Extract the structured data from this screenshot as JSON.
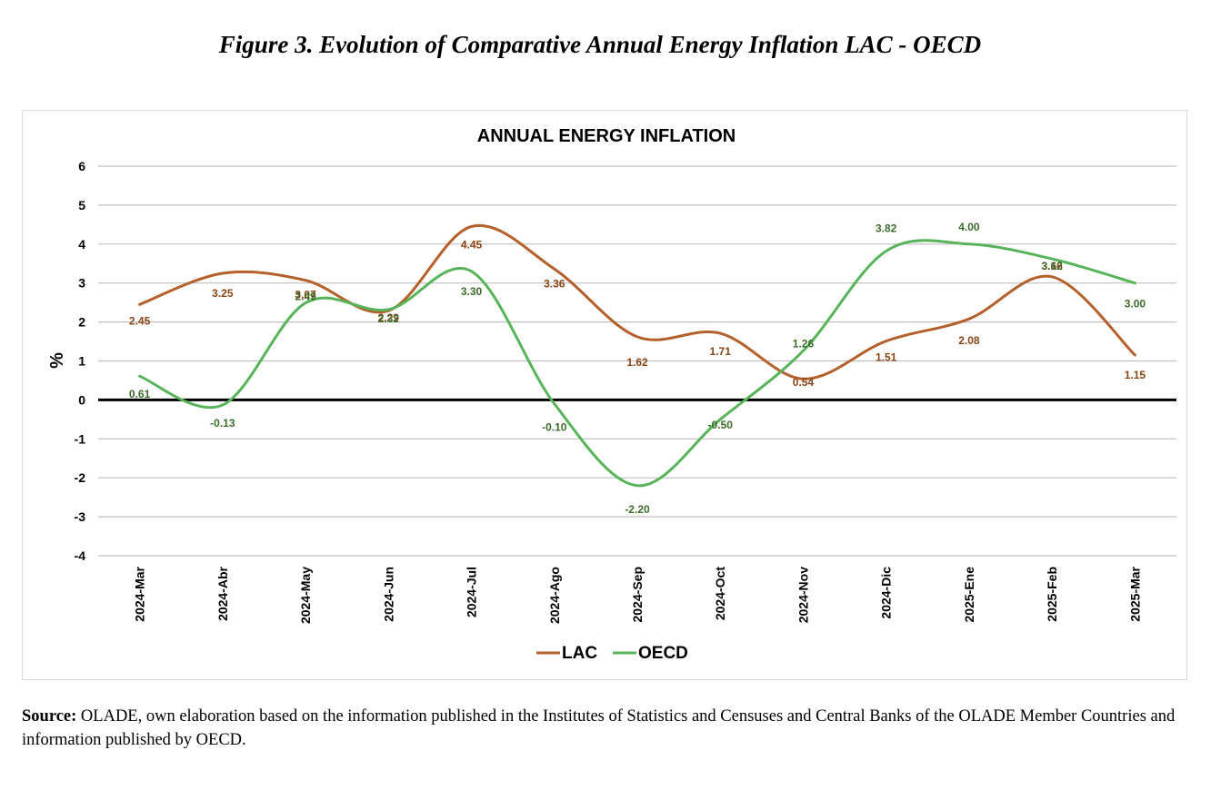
{
  "figure_title": "Figure 3. Evolution of Comparative Annual Energy Inflation LAC - OECD",
  "source": {
    "label": "Source:",
    "text": "OLADE, own elaboration based on the information published in the Institutes of Statistics and Censuses and Central Banks of the OLADE Member Countries and information published by OECD."
  },
  "colors": {
    "LAC": "#b5602a",
    "OECD": "#58b45a",
    "grid": "#bfbfbf",
    "axis": "#000000"
  },
  "chart_data": {
    "type": "line",
    "title": "ANNUAL ENERGY INFLATION",
    "xlabel": "",
    "ylabel": "%",
    "ylim": [
      -4,
      6
    ],
    "yticks": [
      -4,
      -3,
      -2,
      -1,
      0,
      1,
      2,
      3,
      4,
      5,
      6
    ],
    "categories": [
      "2024-Mar",
      "2024-Abr",
      "2024-May",
      "2024-Jun",
      "2024-Jul",
      "2024-Ago",
      "2024-Sep",
      "2024-Oct",
      "2024-Nov",
      "2024-Dic",
      "2025-Ene",
      "2025-Feb",
      "2025-Mar"
    ],
    "series": [
      {
        "name": "LAC",
        "values": [
          2.45,
          3.25,
          3.07,
          2.29,
          4.45,
          3.36,
          1.62,
          1.71,
          0.54,
          1.51,
          2.08,
          3.16,
          1.15
        ]
      },
      {
        "name": "OECD",
        "values": [
          0.61,
          -0.13,
          2.49,
          2.32,
          3.3,
          -0.1,
          -2.2,
          -0.5,
          1.26,
          3.82,
          4.0,
          3.62,
          3.0
        ]
      }
    ],
    "data_labels": {
      "LAC": [
        "2.45",
        "3.25",
        "3.07",
        "2.29",
        "4.45",
        "3.36",
        "1.62",
        "1.71",
        "0.54",
        "1.51",
        "2.08",
        "3.16",
        "1.15"
      ],
      "OECD": [
        "0.61",
        "-0.13",
        "2.49",
        "2.32",
        "3.30",
        "-0.10",
        "-2.20",
        "-0.50",
        "1.26",
        "3.82",
        "4.00",
        "3.62",
        "3.00"
      ]
    },
    "grid": true,
    "smooth": true,
    "legend_position": "bottom"
  }
}
